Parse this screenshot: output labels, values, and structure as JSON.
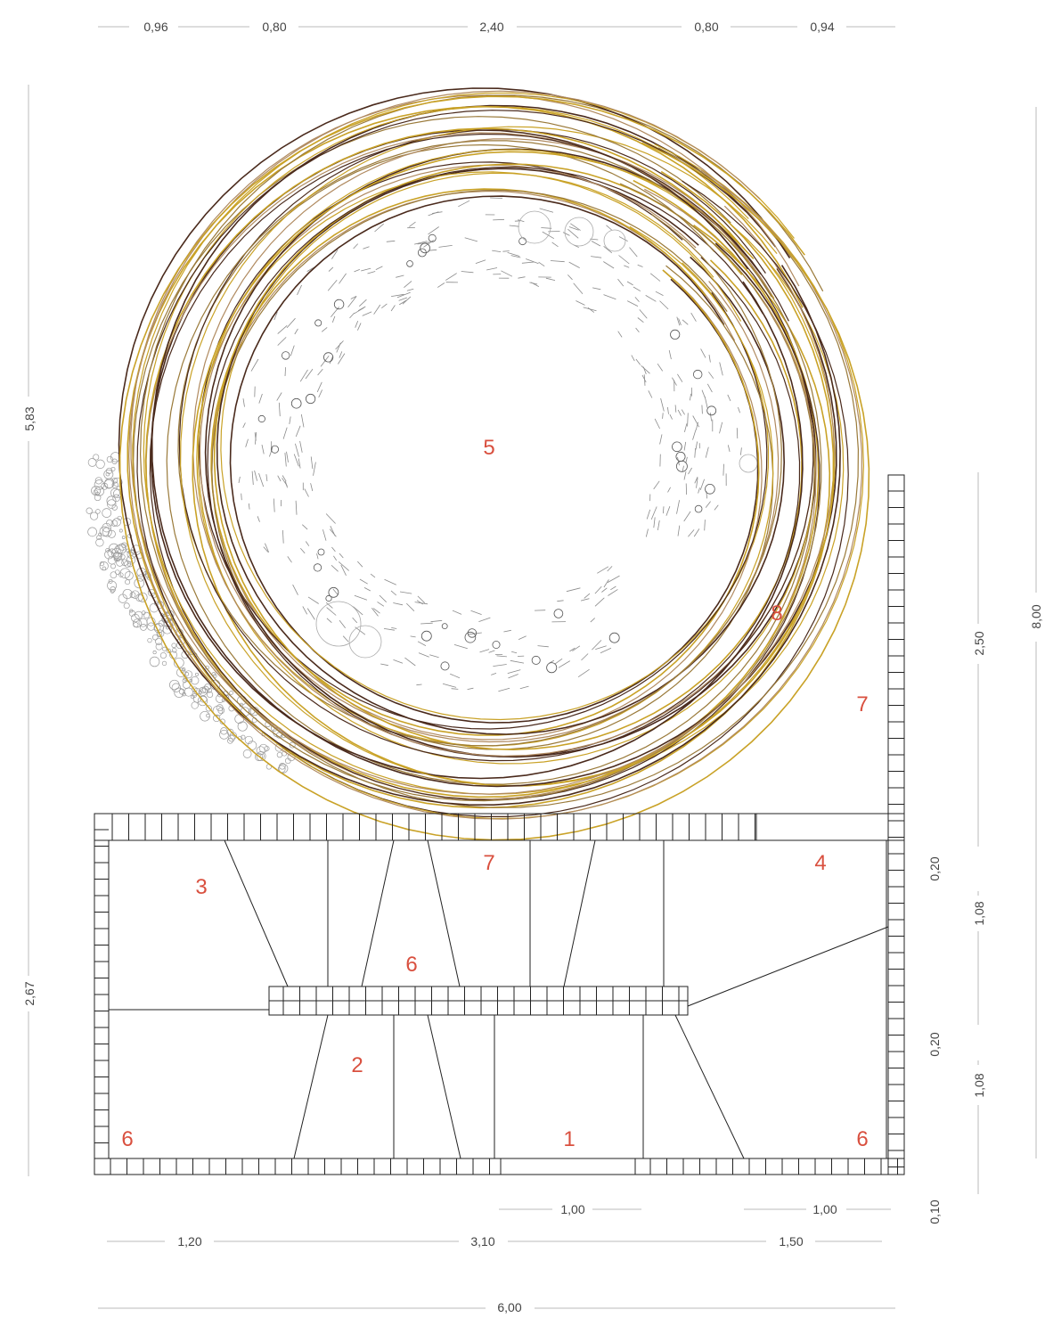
{
  "top_dimensions": [
    "0,96",
    "0,80",
    "2,40",
    "0,80",
    "0,94"
  ],
  "left_dimensions": [
    "5,83",
    "2,67"
  ],
  "right_inner_dimensions": [
    "2,50",
    "0,20",
    "1,08",
    "0,20",
    "1,08",
    "0,10"
  ],
  "right_outer_dimension": "8,00",
  "bottom_row1_dimensions": [
    "1,00",
    "1,00"
  ],
  "bottom_row2_dimensions": [
    "1,20",
    "3,10",
    "1,50"
  ],
  "bottom_total_dimension": "6,00",
  "zone_labels": [
    "1",
    "2",
    "3",
    "4",
    "5",
    "6",
    "6",
    "6",
    "7",
    "7",
    "8"
  ],
  "colors": {
    "labels": "#d9503f",
    "willow_brown": "#4a2a1c",
    "willow_gold": "#c9a227",
    "willow_tan": "#b08a60",
    "lines": "#222222",
    "dimension_text": "#444444"
  }
}
